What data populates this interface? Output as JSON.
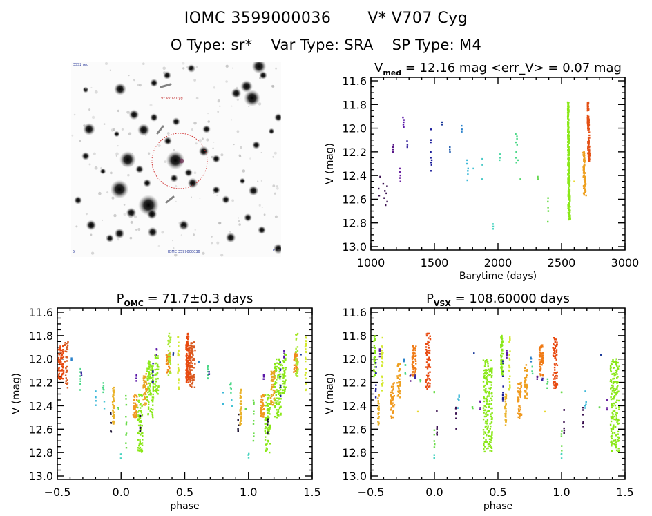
{
  "header": {
    "id_label": "IOMC 3599000036",
    "name_label": "V* V707 Cyg",
    "otype": "O Type: sr*",
    "vartype": "Var Type: SRA",
    "sptype": "SP Type: M4"
  },
  "sky_image": {
    "label_top_left": "DSS2 red",
    "label_target": "V* V707 Cyg",
    "label_bottom_left": "5'",
    "label_bottom_center": "IOMC 3599000036",
    "label_bottom_right": "E",
    "circle_color": "#d03030"
  },
  "chart_data": [
    {
      "id": "lightcurve",
      "type": "scatter",
      "title_main": "V",
      "title_sub": "med",
      "title_rest": " = 12.16 mag <err_V> = 0.07 mag",
      "xlabel": "Barytime (days)",
      "ylabel": "V (mag)",
      "xlim": [
        1000,
        3000
      ],
      "ylim": [
        11.6,
        13.0
      ],
      "y_inverted": true,
      "xticks": [
        1000,
        1500,
        2000,
        2500,
        3000
      ],
      "xtick_labels": [
        "1000",
        "1500",
        "2000",
        "2500",
        "3000"
      ],
      "yticks": [
        11.6,
        11.8,
        12.0,
        12.2,
        12.4,
        12.6,
        12.8,
        13.0
      ],
      "ytick_labels": [
        "11.6",
        "11.8",
        "12.0",
        "12.2",
        "12.4",
        "12.6",
        "12.8",
        "13.0"
      ],
      "color_encodes": "observation time (purple→blue→cyan→green→yellow→orange→red)",
      "clusters": [
        {
          "x": 1095,
          "mags": [
            12.41,
            12.47,
            12.49,
            12.51,
            12.53,
            12.55,
            12.57,
            12.59,
            12.62,
            12.65
          ],
          "color": "#3a1050",
          "spread": 14
        },
        {
          "x": 1175,
          "mags": [
            12.14,
            12.16,
            12.18,
            12.2
          ],
          "color": "#5a1a8a",
          "spread": 2
        },
        {
          "x": 1230,
          "mags": [
            12.34,
            12.37,
            12.4,
            12.42,
            12.45
          ],
          "color": "#6a22a0",
          "spread": 1
        },
        {
          "x": 1255,
          "mags": [
            11.91,
            11.93,
            11.95,
            11.97,
            11.99
          ],
          "color": "#5a18a8",
          "spread": 2
        },
        {
          "x": 1285,
          "mags": [
            12.11,
            12.14,
            12.16
          ],
          "color": "#3c2aa0",
          "spread": 1
        },
        {
          "x": 1475,
          "mags": [
            12.01,
            12.1,
            12.12,
            12.2,
            12.25,
            12.27,
            12.29,
            12.31,
            12.36
          ],
          "color": "#1c1e9a",
          "spread": 2
        },
        {
          "x": 1560,
          "mags": [
            11.95,
            11.97
          ],
          "color": "#1c3a9a",
          "spread": 1
        },
        {
          "x": 1620,
          "mags": [
            12.16,
            12.18,
            12.2
          ],
          "color": "#1e5aae",
          "spread": 1
        },
        {
          "x": 1715,
          "mags": [
            11.98,
            12.01,
            12.03
          ],
          "color": "#2a82cc",
          "spread": 1
        },
        {
          "x": 1760,
          "mags": [
            12.27,
            12.3,
            12.34,
            12.36,
            12.39,
            12.44
          ],
          "color": "#3cb8d8",
          "spread": 2
        },
        {
          "x": 1805,
          "mags": [
            12.34
          ],
          "color": "#44c4d4",
          "spread": 1
        },
        {
          "x": 1875,
          "mags": [
            12.26,
            12.31,
            12.43
          ],
          "color": "#4ccac8",
          "spread": 1
        },
        {
          "x": 1960,
          "mags": [
            12.81,
            12.83,
            12.85
          ],
          "color": "#48d4c0",
          "spread": 1
        },
        {
          "x": 2015,
          "mags": [
            12.22,
            12.25,
            12.27
          ],
          "color": "#4cd8a6",
          "spread": 1
        },
        {
          "x": 2150,
          "mags": [
            12.05,
            12.07,
            12.09,
            12.12,
            12.14,
            12.2,
            12.25,
            12.27,
            12.29
          ],
          "color": "#4cd888",
          "spread": 4
        },
        {
          "x": 2175,
          "mags": [
            12.43
          ],
          "color": "#52d86a",
          "spread": 1
        },
        {
          "x": 2315,
          "mags": [
            12.41,
            12.43
          ],
          "color": "#66d852",
          "spread": 1
        },
        {
          "x": 2395,
          "mags": [
            12.59,
            12.62,
            12.67,
            12.7,
            12.79
          ],
          "color": "#6cdc4c",
          "spread": 1
        }
      ],
      "dense_segments": [
        {
          "x_from": 2545,
          "x_to": 2570,
          "mag_top": 11.78,
          "mag_bottom": 12.8,
          "color": "#8ae818",
          "count": 260
        },
        {
          "x_from": 2665,
          "x_to": 2695,
          "mag_top": 12.2,
          "mag_bottom": 12.57,
          "color": "#eea020",
          "count": 90
        },
        {
          "x_from": 2700,
          "x_to": 2725,
          "mag_top": 11.78,
          "mag_bottom": 12.28,
          "color": "#e45014",
          "count": 110
        }
      ],
      "extra_points": [
        {
          "x": 2600,
          "mag": 12.45,
          "color": "#e8d830"
        }
      ]
    },
    {
      "id": "phase_omc",
      "type": "scatter",
      "title_main": "P",
      "title_sub": "OMC",
      "title_rest": " = 71.7±0.3 days",
      "period_days": 71.7,
      "period_error_days": 0.3,
      "xlabel": "phase",
      "ylabel": "V (mag)",
      "xlim": [
        -0.5,
        1.5
      ],
      "ylim": [
        11.6,
        13.0
      ],
      "y_inverted": true,
      "xticks": [
        -0.5,
        0.0,
        0.5,
        1.0,
        1.5
      ],
      "xtick_labels": [
        "−0.5",
        "0.0",
        "0.5",
        "1.0",
        "1.5"
      ],
      "yticks": [
        11.6,
        11.8,
        12.0,
        12.2,
        12.4,
        12.6,
        12.8,
        13.0
      ],
      "ytick_labels": [
        "11.6",
        "11.8",
        "12.0",
        "12.2",
        "12.4",
        "12.6",
        "12.8",
        "13.0"
      ],
      "repeat_offset": 1.0,
      "clusters": [
        {
          "phase": -0.47,
          "mag_top": 11.88,
          "mag_bottom": 12.18,
          "color": "#e84a10",
          "count": 70,
          "width": 0.04
        },
        {
          "phase": -0.43,
          "mag_top": 11.85,
          "mag_bottom": 12.25,
          "color": "#d85a20",
          "count": 30,
          "width": 0.03
        },
        {
          "phase": -0.39,
          "mag_top": 11.99,
          "mag_bottom": 12.03,
          "color": "#2a82cc",
          "count": 3,
          "width": 0.005
        },
        {
          "phase": -0.32,
          "mag_top": 12.05,
          "mag_bottom": 12.27,
          "color": "#4cd888",
          "count": 8,
          "width": 0.005
        },
        {
          "phase": -0.31,
          "mag_top": 12.11,
          "mag_bottom": 12.16,
          "color": "#3c2aa0",
          "count": 3,
          "width": 0.004
        },
        {
          "phase": -0.2,
          "mag_top": 12.26,
          "mag_bottom": 12.43,
          "color": "#3cb8d8",
          "count": 4,
          "width": 0.005
        },
        {
          "phase": -0.14,
          "mag_top": 12.2,
          "mag_bottom": 12.29,
          "color": "#4cd888",
          "count": 6,
          "width": 0.01
        },
        {
          "phase": -0.13,
          "mag_top": 12.34,
          "mag_bottom": 12.45,
          "color": "#44c4d4",
          "count": 2,
          "width": 0.005
        },
        {
          "phase": -0.08,
          "mag_top": 12.46,
          "mag_bottom": 12.65,
          "color": "#1a1030",
          "count": 6,
          "width": 0.005
        },
        {
          "phase": -0.06,
          "mag_top": 12.24,
          "mag_bottom": 12.57,
          "color": "#eab22a",
          "count": 40,
          "width": 0.012
        },
        {
          "phase": -0.02,
          "mag_top": 12.41,
          "mag_bottom": 12.43,
          "color": "#66d852",
          "count": 2,
          "width": 0.004
        },
        {
          "phase": 0.0,
          "mag_top": 12.81,
          "mag_bottom": 12.85,
          "color": "#48d4c0",
          "count": 3,
          "width": 0.005
        },
        {
          "phase": 0.04,
          "mag_top": 12.27,
          "mag_bottom": 12.79,
          "color": "#6cdc4c",
          "count": 10,
          "width": 0.005
        },
        {
          "phase": 0.11,
          "mag_top": 12.3,
          "mag_bottom": 12.5,
          "color": "#f09a20",
          "count": 50,
          "width": 0.03
        },
        {
          "phase": 0.12,
          "mag_top": 12.13,
          "mag_bottom": 12.19,
          "color": "#5a18a8",
          "count": 4,
          "width": 0.003
        },
        {
          "phase": 0.15,
          "mag_top": 12.3,
          "mag_bottom": 12.8,
          "color": "#8ae818",
          "count": 70,
          "width": 0.04
        },
        {
          "phase": 0.15,
          "mag_top": 12.47,
          "mag_bottom": 12.65,
          "color": "#1a1030",
          "count": 6,
          "width": 0.004
        },
        {
          "phase": 0.19,
          "mag_top": 12.1,
          "mag_bottom": 12.4,
          "color": "#e8a420",
          "count": 50,
          "width": 0.03
        },
        {
          "phase": 0.23,
          "mag_top": 12.0,
          "mag_bottom": 12.5,
          "color": "#8ae818",
          "count": 90,
          "width": 0.05
        },
        {
          "phase": 0.25,
          "mag_top": 12.01,
          "mag_bottom": 12.36,
          "color": "#1c1e9a",
          "count": 8,
          "width": 0.004
        },
        {
          "phase": 0.28,
          "mag_top": 11.91,
          "mag_bottom": 11.99,
          "color": "#5a18a8",
          "count": 5,
          "width": 0.003
        },
        {
          "phase": 0.28,
          "mag_top": 11.95,
          "mag_bottom": 12.3,
          "color": "#8ae818",
          "count": 40,
          "width": 0.03
        },
        {
          "phase": 0.37,
          "mag_top": 11.95,
          "mag_bottom": 12.12,
          "color": "#f08a1a",
          "count": 40,
          "width": 0.03
        },
        {
          "phase": 0.38,
          "mag_top": 11.78,
          "mag_bottom": 12.15,
          "color": "#a8e830",
          "count": 30,
          "width": 0.02
        },
        {
          "phase": 0.41,
          "mag_top": 11.95,
          "mag_bottom": 11.97,
          "color": "#1c3a9a",
          "count": 2,
          "width": 0.003
        },
        {
          "phase": 0.45,
          "mag_top": 11.81,
          "mag_bottom": 12.28,
          "color": "#d4e830",
          "count": 25,
          "width": 0.01
        },
        {
          "phase": 0.52,
          "mag_top": 11.78,
          "mag_bottom": 12.2,
          "color": "#e84a10",
          "count": 70,
          "width": 0.02
        },
        {
          "phase": 0.55,
          "mag_top": 11.85,
          "mag_bottom": 12.25,
          "color": "#d85a20",
          "count": 40,
          "width": 0.03
        }
      ]
    },
    {
      "id": "phase_vsx",
      "type": "scatter",
      "title_main": "P",
      "title_sub": "VSX",
      "title_rest": " = 108.60000 days",
      "period_days": 108.6,
      "xlabel": "phase",
      "ylabel": "V (mag)",
      "xlim": [
        -0.5,
        1.5
      ],
      "ylim": [
        11.6,
        13.0
      ],
      "y_inverted": true,
      "xticks": [
        -0.5,
        0.0,
        0.5,
        1.0,
        1.5
      ],
      "xtick_labels": [
        "−0.5",
        "0.0",
        "0.5",
        "1.0",
        "1.5"
      ],
      "yticks": [
        11.6,
        11.8,
        12.0,
        12.2,
        12.4,
        12.6,
        12.8,
        13.0
      ],
      "ytick_labels": [
        "11.6",
        "11.8",
        "12.0",
        "12.2",
        "12.4",
        "12.6",
        "12.8",
        "13.0"
      ],
      "repeat_offset": 1.0,
      "clusters": [
        {
          "phase": -0.47,
          "mag_top": 11.8,
          "mag_bottom": 12.15,
          "color": "#8ae818",
          "count": 30,
          "width": 0.015
        },
        {
          "phase": -0.46,
          "mag_top": 12.01,
          "mag_bottom": 12.36,
          "color": "#1c1e9a",
          "count": 8,
          "width": 0.004
        },
        {
          "phase": -0.44,
          "mag_top": 12.3,
          "mag_bottom": 12.57,
          "color": "#eab22a",
          "count": 30,
          "width": 0.01
        },
        {
          "phase": -0.43,
          "mag_top": 11.91,
          "mag_bottom": 11.99,
          "color": "#5a18a8",
          "count": 5,
          "width": 0.003
        },
        {
          "phase": -0.41,
          "mag_top": 11.81,
          "mag_bottom": 12.28,
          "color": "#d4e830",
          "count": 25,
          "width": 0.01
        },
        {
          "phase": -0.33,
          "mag_top": 12.2,
          "mag_bottom": 12.51,
          "color": "#f09a20",
          "count": 50,
          "width": 0.03
        },
        {
          "phase": -0.28,
          "mag_top": 12.04,
          "mag_bottom": 12.35,
          "color": "#eea020",
          "count": 40,
          "width": 0.025
        },
        {
          "phase": -0.24,
          "mag_top": 11.98,
          "mag_bottom": 12.03,
          "color": "#2a82cc",
          "count": 3,
          "width": 0.005
        },
        {
          "phase": -0.23,
          "mag_top": 12.05,
          "mag_bottom": 12.13,
          "color": "#4cd888",
          "count": 4,
          "width": 0.005
        },
        {
          "phase": -0.19,
          "mag_top": 12.14,
          "mag_bottom": 12.2,
          "color": "#5a1a8a",
          "count": 4,
          "width": 0.003
        },
        {
          "phase": -0.16,
          "mag_top": 11.88,
          "mag_bottom": 12.15,
          "color": "#f07a14",
          "count": 60,
          "width": 0.03
        },
        {
          "phase": -0.15,
          "mag_top": 12.14,
          "mag_bottom": 12.18,
          "color": "#3c2aa0",
          "count": 3,
          "width": 0.004
        },
        {
          "phase": -0.13,
          "mag_top": 12.45,
          "mag_bottom": 12.45,
          "color": "#e8d830",
          "count": 1,
          "width": 0.001
        },
        {
          "phase": -0.11,
          "mag_top": 12.17,
          "mag_bottom": 12.29,
          "color": "#52d86a",
          "count": 4,
          "width": 0.005
        },
        {
          "phase": -0.05,
          "mag_top": 11.78,
          "mag_bottom": 12.26,
          "color": "#e84a10",
          "count": 70,
          "width": 0.035
        },
        {
          "phase": 0.0,
          "mag_top": 12.27,
          "mag_bottom": 12.3,
          "color": "#6cdc4c",
          "count": 2,
          "width": 0.003
        },
        {
          "phase": 0.0,
          "mag_top": 12.59,
          "mag_bottom": 12.8,
          "color": "#6cdc4c",
          "count": 5,
          "width": 0.004
        },
        {
          "phase": 0.0,
          "mag_top": 12.81,
          "mag_bottom": 12.85,
          "color": "#48d4c0",
          "count": 3,
          "width": 0.004
        },
        {
          "phase": 0.02,
          "mag_top": 12.43,
          "mag_bottom": 12.65,
          "color": "#3a1050",
          "count": 6,
          "width": 0.003
        },
        {
          "phase": 0.17,
          "mag_top": 12.41,
          "mag_bottom": 12.63,
          "color": "#3a1050",
          "count": 6,
          "width": 0.003
        },
        {
          "phase": 0.19,
          "mag_top": 12.26,
          "mag_bottom": 12.43,
          "color": "#3cb8d8",
          "count": 5,
          "width": 0.01
        },
        {
          "phase": 0.31,
          "mag_top": 11.95,
          "mag_bottom": 11.97,
          "color": "#1c3a9a",
          "count": 2,
          "width": 0.003
        },
        {
          "phase": 0.3,
          "mag_top": 12.41,
          "mag_bottom": 12.43,
          "color": "#66d852",
          "count": 2,
          "width": 0.003
        },
        {
          "phase": 0.36,
          "mag_top": 12.34,
          "mag_bottom": 12.45,
          "color": "#6a22a0",
          "count": 4,
          "width": 0.003
        },
        {
          "phase": 0.42,
          "mag_top": 12.0,
          "mag_bottom": 12.8,
          "color": "#8ae818",
          "count": 180,
          "width": 0.07
        },
        {
          "phase": 0.53,
          "mag_top": 11.8,
          "mag_bottom": 12.15,
          "color": "#8ae818",
          "count": 30,
          "width": 0.015
        },
        {
          "phase": 0.54,
          "mag_top": 12.01,
          "mag_bottom": 12.36,
          "color": "#1c1e9a",
          "count": 8,
          "width": 0.004
        }
      ]
    }
  ]
}
